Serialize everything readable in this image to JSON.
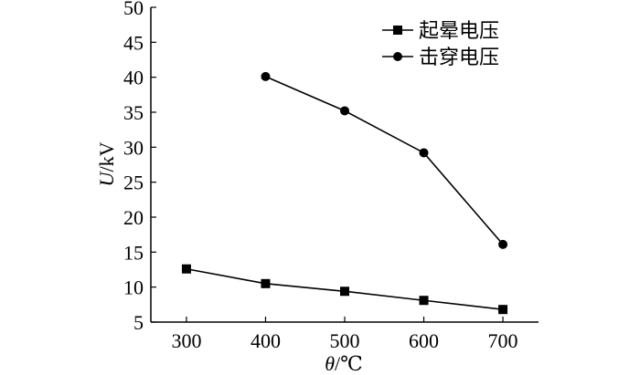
{
  "chart_data": {
    "type": "line",
    "x": [
      300,
      400,
      500,
      600,
      700
    ],
    "series": [
      {
        "name": "起晕电压",
        "marker": "square",
        "x": [
          300,
          400,
          500,
          600,
          700
        ],
        "values": [
          12.6,
          10.5,
          9.4,
          8.1,
          6.8
        ]
      },
      {
        "name": "击穿电压",
        "marker": "circle",
        "x": [
          400,
          500,
          600,
          700
        ],
        "values": [
          40.1,
          35.2,
          29.2,
          16.1
        ]
      }
    ],
    "xlabel": {
      "symbol": "θ",
      "unit": "/℃"
    },
    "ylabel": {
      "symbol": "U",
      "unit": "/kV"
    },
    "xlim": [
      255,
      745
    ],
    "ylim": [
      5,
      50
    ],
    "xticks": [
      300,
      400,
      500,
      600,
      700
    ],
    "yticks": [
      5,
      10,
      15,
      20,
      25,
      30,
      35,
      40,
      45,
      50
    ],
    "legend_position": "top-right",
    "grid": false,
    "colors": {
      "line": "#000000",
      "marker": "#000000"
    }
  }
}
